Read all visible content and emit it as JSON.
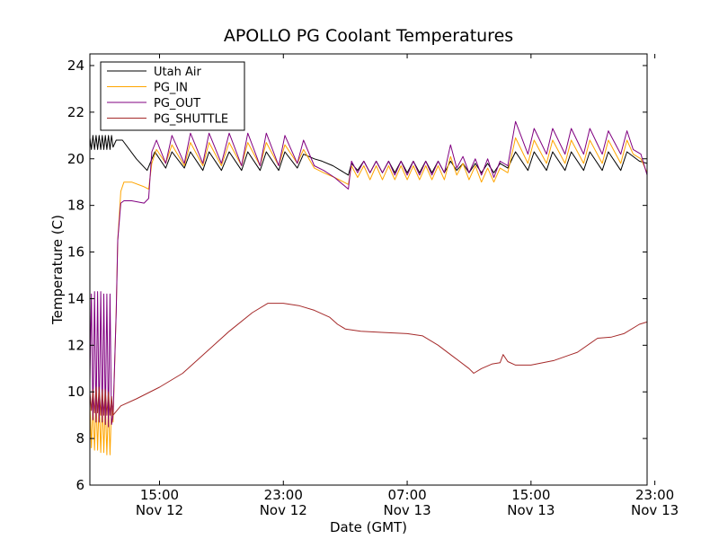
{
  "chart_data": {
    "type": "line",
    "title": "APOLLO PG Coolant Temperatures",
    "xlabel": "Date (GMT)",
    "ylabel": "Temperature (C)",
    "x_unit": "hours since Nov 12 00:00 GMT",
    "xlim": [
      10.5,
      46.5
    ],
    "ylim": [
      6,
      24.5
    ],
    "yticks": [
      6,
      8,
      10,
      12,
      14,
      16,
      18,
      20,
      22,
      24
    ],
    "xticks": [
      {
        "x": 15,
        "time": "15:00",
        "date": "Nov 12"
      },
      {
        "x": 23,
        "time": "23:00",
        "date": "Nov 12"
      },
      {
        "x": 31,
        "time": "07:00",
        "date": "Nov 13"
      },
      {
        "x": 39,
        "time": "15:00",
        "date": "Nov 13"
      },
      {
        "x": 47,
        "time": "23:00",
        "date": "Nov 13"
      }
    ],
    "legend_position": "top-left",
    "grid": false,
    "series": [
      {
        "name": "Utah Air",
        "color": "#000000",
        "points": [
          [
            10.5,
            20.9
          ],
          [
            10.6,
            20.4
          ],
          [
            10.7,
            21.0
          ],
          [
            10.8,
            20.4
          ],
          [
            10.9,
            21.0
          ],
          [
            11.0,
            20.4
          ],
          [
            11.1,
            21.0
          ],
          [
            11.2,
            20.4
          ],
          [
            11.3,
            21.0
          ],
          [
            11.4,
            20.4
          ],
          [
            11.5,
            21.0
          ],
          [
            11.6,
            20.4
          ],
          [
            11.7,
            21.0
          ],
          [
            11.8,
            20.4
          ],
          [
            11.9,
            21.0
          ],
          [
            12.0,
            20.5
          ],
          [
            12.2,
            20.8
          ],
          [
            12.6,
            20.8
          ],
          [
            13.5,
            20.0
          ],
          [
            14.2,
            19.5
          ],
          [
            14.7,
            20.3
          ],
          [
            15.4,
            19.6
          ],
          [
            15.8,
            20.3
          ],
          [
            16.6,
            19.6
          ],
          [
            17.0,
            20.3
          ],
          [
            17.8,
            19.5
          ],
          [
            18.2,
            20.3
          ],
          [
            19.0,
            19.5
          ],
          [
            19.5,
            20.3
          ],
          [
            20.3,
            19.5
          ],
          [
            20.7,
            20.3
          ],
          [
            21.5,
            19.5
          ],
          [
            21.9,
            20.3
          ],
          [
            22.7,
            19.5
          ],
          [
            23.1,
            20.3
          ],
          [
            23.9,
            19.6
          ],
          [
            24.3,
            20.2
          ],
          [
            25.0,
            20.0
          ],
          [
            25.5,
            19.9
          ],
          [
            26.2,
            19.7
          ],
          [
            27.2,
            19.3
          ],
          [
            27.4,
            19.8
          ],
          [
            27.8,
            19.5
          ],
          [
            28.2,
            19.9
          ],
          [
            28.6,
            19.4
          ],
          [
            29.0,
            19.9
          ],
          [
            29.4,
            19.4
          ],
          [
            29.8,
            19.9
          ],
          [
            30.2,
            19.4
          ],
          [
            30.6,
            19.9
          ],
          [
            31.0,
            19.4
          ],
          [
            31.4,
            19.9
          ],
          [
            31.8,
            19.4
          ],
          [
            32.2,
            19.9
          ],
          [
            32.6,
            19.4
          ],
          [
            33.0,
            19.9
          ],
          [
            33.4,
            19.4
          ],
          [
            33.8,
            19.9
          ],
          [
            34.2,
            19.5
          ],
          [
            34.6,
            19.8
          ],
          [
            35.0,
            19.4
          ],
          [
            35.4,
            19.8
          ],
          [
            35.8,
            19.4
          ],
          [
            36.2,
            19.8
          ],
          [
            36.6,
            19.4
          ],
          [
            37.0,
            19.8
          ],
          [
            37.5,
            19.6
          ],
          [
            38.0,
            20.3
          ],
          [
            38.8,
            19.5
          ],
          [
            39.2,
            20.3
          ],
          [
            40.0,
            19.5
          ],
          [
            40.4,
            20.3
          ],
          [
            41.2,
            19.5
          ],
          [
            41.6,
            20.3
          ],
          [
            42.4,
            19.5
          ],
          [
            42.8,
            20.3
          ],
          [
            43.6,
            19.5
          ],
          [
            44.0,
            20.3
          ],
          [
            44.8,
            19.5
          ],
          [
            45.2,
            20.3
          ],
          [
            46.0,
            19.9
          ],
          [
            46.5,
            19.8
          ]
        ]
      },
      {
        "name": "PG_IN",
        "color": "#ffa500",
        "points": [
          [
            10.5,
            9.5
          ],
          [
            10.6,
            7.6
          ],
          [
            10.7,
            9.6
          ],
          [
            10.8,
            7.5
          ],
          [
            10.9,
            9.7
          ],
          [
            11.0,
            7.5
          ],
          [
            11.1,
            9.7
          ],
          [
            11.2,
            7.4
          ],
          [
            11.3,
            9.6
          ],
          [
            11.4,
            7.4
          ],
          [
            11.5,
            9.6
          ],
          [
            11.6,
            7.3
          ],
          [
            11.7,
            9.5
          ],
          [
            11.8,
            7.3
          ],
          [
            11.9,
            9.4
          ],
          [
            12.0,
            8.7
          ],
          [
            12.2,
            13.5
          ],
          [
            12.3,
            16.5
          ],
          [
            12.5,
            18.6
          ],
          [
            12.7,
            19.0
          ],
          [
            13.2,
            19.0
          ],
          [
            14.0,
            18.8
          ],
          [
            14.3,
            18.7
          ],
          [
            14.5,
            19.8
          ],
          [
            14.8,
            20.4
          ],
          [
            15.4,
            19.8
          ],
          [
            15.8,
            20.6
          ],
          [
            16.6,
            19.7
          ],
          [
            17.0,
            20.7
          ],
          [
            17.8,
            19.7
          ],
          [
            18.2,
            20.7
          ],
          [
            19.0,
            19.7
          ],
          [
            19.5,
            20.7
          ],
          [
            20.3,
            19.7
          ],
          [
            20.7,
            20.7
          ],
          [
            21.5,
            19.7
          ],
          [
            21.9,
            20.7
          ],
          [
            22.7,
            19.7
          ],
          [
            23.1,
            20.6
          ],
          [
            23.9,
            19.8
          ],
          [
            24.3,
            20.4
          ],
          [
            25.0,
            19.6
          ],
          [
            25.6,
            19.4
          ],
          [
            26.3,
            19.2
          ],
          [
            27.2,
            18.9
          ],
          [
            27.4,
            19.7
          ],
          [
            27.8,
            19.2
          ],
          [
            28.2,
            19.7
          ],
          [
            28.6,
            19.1
          ],
          [
            29.0,
            19.7
          ],
          [
            29.4,
            19.1
          ],
          [
            29.8,
            19.7
          ],
          [
            30.2,
            19.1
          ],
          [
            30.6,
            19.7
          ],
          [
            31.0,
            19.1
          ],
          [
            31.4,
            19.7
          ],
          [
            31.8,
            19.1
          ],
          [
            32.2,
            19.7
          ],
          [
            32.6,
            19.1
          ],
          [
            33.0,
            19.7
          ],
          [
            33.4,
            19.1
          ],
          [
            33.8,
            20.1
          ],
          [
            34.2,
            19.3
          ],
          [
            34.6,
            19.8
          ],
          [
            35.0,
            19.1
          ],
          [
            35.4,
            19.7
          ],
          [
            35.8,
            19.0
          ],
          [
            36.2,
            19.6
          ],
          [
            36.6,
            19.0
          ],
          [
            37.0,
            19.6
          ],
          [
            37.5,
            19.4
          ],
          [
            38.0,
            20.9
          ],
          [
            38.8,
            19.8
          ],
          [
            39.2,
            20.8
          ],
          [
            40.0,
            19.8
          ],
          [
            40.4,
            20.8
          ],
          [
            41.2,
            19.8
          ],
          [
            41.6,
            20.8
          ],
          [
            42.4,
            19.8
          ],
          [
            42.8,
            20.8
          ],
          [
            43.6,
            19.8
          ],
          [
            44.0,
            20.8
          ],
          [
            44.8,
            19.8
          ],
          [
            45.2,
            20.8
          ],
          [
            45.6,
            20.2
          ],
          [
            46.1,
            20.0
          ],
          [
            46.5,
            19.4
          ]
        ]
      },
      {
        "name": "PG_OUT",
        "color": "#800080",
        "points": [
          [
            10.5,
            10.4
          ],
          [
            10.6,
            14.2
          ],
          [
            10.7,
            8.8
          ],
          [
            10.8,
            14.3
          ],
          [
            10.9,
            8.7
          ],
          [
            11.0,
            14.3
          ],
          [
            11.1,
            8.7
          ],
          [
            11.2,
            14.3
          ],
          [
            11.3,
            8.7
          ],
          [
            11.4,
            14.2
          ],
          [
            11.5,
            8.6
          ],
          [
            11.6,
            14.2
          ],
          [
            11.7,
            8.5
          ],
          [
            11.8,
            14.2
          ],
          [
            11.9,
            8.6
          ],
          [
            12.0,
            9.0
          ],
          [
            12.2,
            13.4
          ],
          [
            12.3,
            16.5
          ],
          [
            12.5,
            18.1
          ],
          [
            12.7,
            18.2
          ],
          [
            13.2,
            18.2
          ],
          [
            14.0,
            18.1
          ],
          [
            14.3,
            18.3
          ],
          [
            14.5,
            20.3
          ],
          [
            14.8,
            20.8
          ],
          [
            15.4,
            19.8
          ],
          [
            15.8,
            21.0
          ],
          [
            16.6,
            19.8
          ],
          [
            17.0,
            21.1
          ],
          [
            17.8,
            19.8
          ],
          [
            18.2,
            21.1
          ],
          [
            19.0,
            19.8
          ],
          [
            19.5,
            21.1
          ],
          [
            20.3,
            19.7
          ],
          [
            20.7,
            21.1
          ],
          [
            21.5,
            19.7
          ],
          [
            21.9,
            21.1
          ],
          [
            22.7,
            19.7
          ],
          [
            23.1,
            21.0
          ],
          [
            23.9,
            19.8
          ],
          [
            24.3,
            20.8
          ],
          [
            25.0,
            19.7
          ],
          [
            25.6,
            19.5
          ],
          [
            26.3,
            19.2
          ],
          [
            27.2,
            18.7
          ],
          [
            27.4,
            19.9
          ],
          [
            27.8,
            19.4
          ],
          [
            28.2,
            19.9
          ],
          [
            28.6,
            19.4
          ],
          [
            29.0,
            19.9
          ],
          [
            29.4,
            19.4
          ],
          [
            29.8,
            19.9
          ],
          [
            30.2,
            19.3
          ],
          [
            30.6,
            19.9
          ],
          [
            31.0,
            19.3
          ],
          [
            31.4,
            19.9
          ],
          [
            31.8,
            19.3
          ],
          [
            32.2,
            19.9
          ],
          [
            32.6,
            19.3
          ],
          [
            33.0,
            19.9
          ],
          [
            33.4,
            19.4
          ],
          [
            33.8,
            20.6
          ],
          [
            34.2,
            19.6
          ],
          [
            34.6,
            20.1
          ],
          [
            35.0,
            19.4
          ],
          [
            35.4,
            20.0
          ],
          [
            35.8,
            19.3
          ],
          [
            36.2,
            20.0
          ],
          [
            36.6,
            19.2
          ],
          [
            37.0,
            19.9
          ],
          [
            37.5,
            19.7
          ],
          [
            38.0,
            21.6
          ],
          [
            38.8,
            20.2
          ],
          [
            39.2,
            21.3
          ],
          [
            40.0,
            20.2
          ],
          [
            40.4,
            21.3
          ],
          [
            41.2,
            20.2
          ],
          [
            41.6,
            21.3
          ],
          [
            42.4,
            20.2
          ],
          [
            42.8,
            21.3
          ],
          [
            43.6,
            20.2
          ],
          [
            44.0,
            21.2
          ],
          [
            44.8,
            20.2
          ],
          [
            45.2,
            21.2
          ],
          [
            45.6,
            20.4
          ],
          [
            46.1,
            20.2
          ],
          [
            46.5,
            19.3
          ]
        ]
      },
      {
        "name": "PG_SHUTTLE",
        "color": "#a52a2a",
        "points": [
          [
            10.5,
            10.0
          ],
          [
            10.6,
            9.2
          ],
          [
            10.7,
            10.1
          ],
          [
            10.8,
            9.1
          ],
          [
            10.9,
            10.2
          ],
          [
            11.0,
            9.1
          ],
          [
            11.1,
            10.2
          ],
          [
            11.2,
            9.0
          ],
          [
            11.3,
            10.1
          ],
          [
            11.4,
            9.0
          ],
          [
            11.5,
            10.1
          ],
          [
            11.6,
            9.0
          ],
          [
            11.7,
            10.0
          ],
          [
            11.8,
            9.0
          ],
          [
            11.9,
            9.8
          ],
          [
            12.0,
            9.0
          ],
          [
            12.5,
            9.4
          ],
          [
            13.5,
            9.7
          ],
          [
            15.0,
            10.2
          ],
          [
            16.5,
            10.8
          ],
          [
            18.0,
            11.7
          ],
          [
            19.5,
            12.6
          ],
          [
            21.0,
            13.4
          ],
          [
            22.0,
            13.8
          ],
          [
            23.0,
            13.8
          ],
          [
            24.0,
            13.7
          ],
          [
            25.0,
            13.5
          ],
          [
            26.0,
            13.2
          ],
          [
            26.5,
            12.9
          ],
          [
            27.0,
            12.7
          ],
          [
            28.0,
            12.6
          ],
          [
            29.5,
            12.55
          ],
          [
            31.0,
            12.5
          ],
          [
            32.0,
            12.4
          ],
          [
            33.0,
            12.0
          ],
          [
            34.0,
            11.5
          ],
          [
            35.0,
            11.0
          ],
          [
            35.3,
            10.8
          ],
          [
            35.8,
            11.0
          ],
          [
            36.5,
            11.2
          ],
          [
            37.0,
            11.25
          ],
          [
            37.2,
            11.6
          ],
          [
            37.5,
            11.3
          ],
          [
            38.0,
            11.15
          ],
          [
            39.0,
            11.15
          ],
          [
            40.5,
            11.35
          ],
          [
            42.0,
            11.7
          ],
          [
            43.3,
            12.3
          ],
          [
            44.2,
            12.35
          ],
          [
            45.0,
            12.5
          ],
          [
            46.0,
            12.9
          ],
          [
            46.5,
            13.0
          ]
        ]
      }
    ]
  }
}
